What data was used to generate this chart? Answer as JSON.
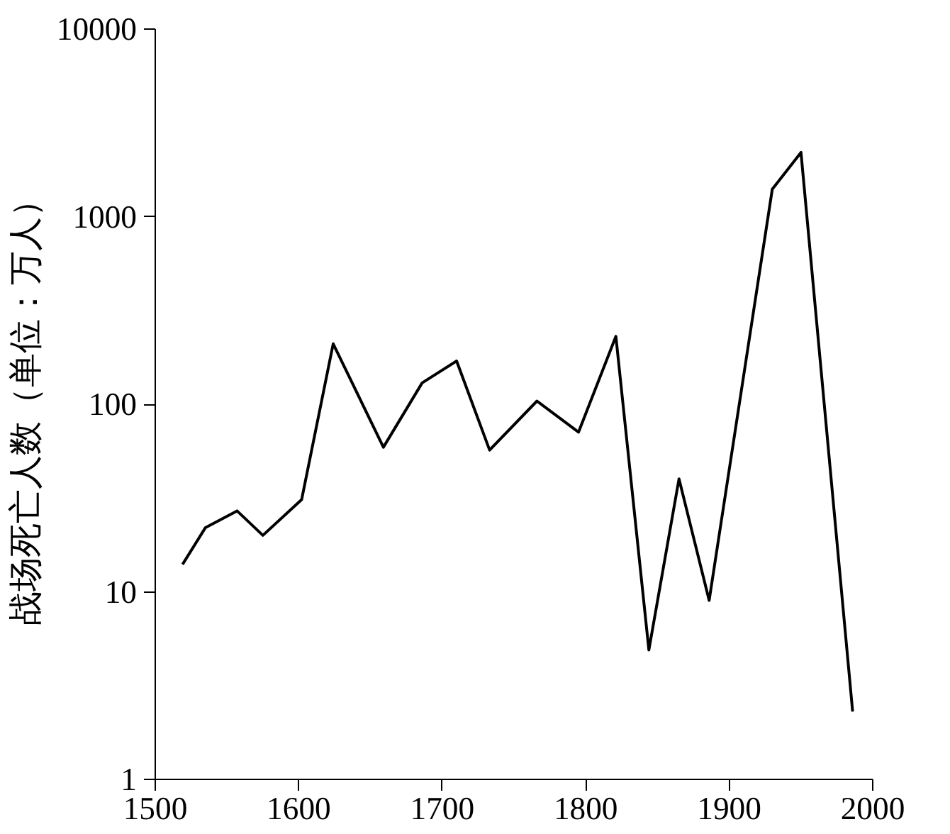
{
  "chart_data": {
    "type": "line",
    "ylabel": "战场死亡人数（单位：万人）",
    "log": "y",
    "grid": false,
    "marker": "none",
    "line_style": "solid",
    "xlim": [
      1500,
      2000
    ],
    "xticks": [
      1500,
      1600,
      1700,
      1800,
      1900,
      2000
    ],
    "ylim": [
      1,
      10000
    ],
    "yticks": [
      1,
      10,
      100,
      1000,
      10000
    ],
    "x": [
      1519,
      1535,
      1557,
      1575,
      1602,
      1624,
      1659,
      1686,
      1710,
      1733,
      1766,
      1795,
      1821,
      1844,
      1865,
      1886,
      1930,
      1950,
      1986
    ],
    "series": [
      {
        "color": "#000000",
        "values": [
          14,
          22,
          27,
          20,
          31,
          210,
          59,
          130,
          170,
          57,
          104,
          71,
          230,
          4.9,
          40,
          9,
          1400,
          2200,
          2.3
        ]
      }
    ]
  }
}
